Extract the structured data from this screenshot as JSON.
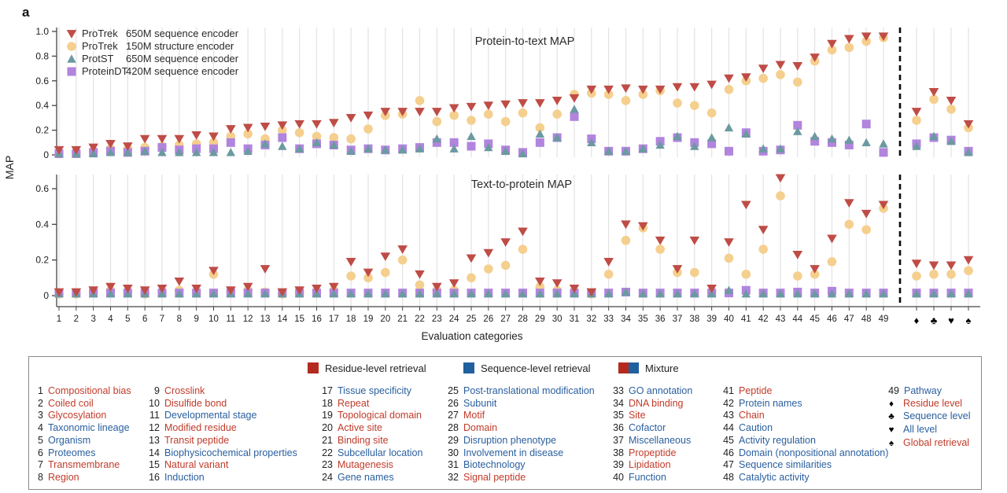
{
  "figure_label": "a",
  "axis": {
    "ylabel": "MAP",
    "xlabel": "Evaluation categories"
  },
  "encoder_legend": [
    {
      "name": "ProTrek",
      "desc": "650M sequence encoder",
      "marker": "triangle-down",
      "color": "#bf4c46"
    },
    {
      "name": "ProTrek",
      "desc": "150M structure encoder",
      "marker": "circle",
      "color": "#f5cf8e"
    },
    {
      "name": "ProtST",
      "desc": "650M sequence encoder",
      "marker": "triangle-up",
      "color": "#6b9aa1"
    },
    {
      "name": "ProteinDT",
      "desc": "420M sequence encoder",
      "marker": "square",
      "color": "#b184de"
    }
  ],
  "chart_data": [
    {
      "type": "scatter",
      "title": "Protein-to-text MAP",
      "ylabel": "MAP",
      "ylim": [
        0,
        1.0
      ],
      "yticks": [
        "0",
        "0.2",
        "0.4",
        "0.6",
        "0.8",
        "1.0"
      ],
      "x_categories": [
        "1",
        "2",
        "3",
        "4",
        "5",
        "6",
        "7",
        "8",
        "9",
        "10",
        "11",
        "12",
        "13",
        "14",
        "15",
        "16",
        "17",
        "18",
        "19",
        "20",
        "21",
        "22",
        "23",
        "24",
        "25",
        "26",
        "27",
        "28",
        "29",
        "30",
        "31",
        "32",
        "33",
        "34",
        "35",
        "36",
        "37",
        "38",
        "39",
        "40",
        "41",
        "42",
        "43",
        "44",
        "45",
        "46",
        "47",
        "48",
        "49",
        "♦",
        "♣",
        "♥",
        "♠"
      ],
      "series": [
        {
          "name": "ProTrek 650M sequence encoder",
          "marker": "triangle-down",
          "color": "#bf4c46",
          "values": [
            0.04,
            0.04,
            0.06,
            0.09,
            0.07,
            0.13,
            0.13,
            0.13,
            0.16,
            0.15,
            0.21,
            0.22,
            0.23,
            0.24,
            0.25,
            0.25,
            0.26,
            0.3,
            0.32,
            0.35,
            0.35,
            0.35,
            0.35,
            0.38,
            0.39,
            0.4,
            0.41,
            0.42,
            0.42,
            0.44,
            0.46,
            0.53,
            0.53,
            0.54,
            0.53,
            0.53,
            0.55,
            0.55,
            0.57,
            0.62,
            0.63,
            0.7,
            0.73,
            0.72,
            0.79,
            0.9,
            0.94,
            0.96,
            0.96,
            0.35,
            0.51,
            0.44,
            0.25
          ]
        },
        {
          "name": "ProTrek 150M structure encoder",
          "marker": "circle",
          "color": "#f5cf8e",
          "values": [
            0.01,
            0.02,
            0.03,
            0.05,
            0.05,
            0.06,
            0.07,
            0.08,
            0.09,
            0.1,
            0.15,
            0.17,
            0.13,
            0.2,
            0.18,
            0.15,
            0.14,
            0.13,
            0.21,
            0.32,
            0.33,
            0.44,
            0.27,
            0.32,
            0.28,
            0.33,
            0.27,
            0.34,
            0.22,
            0.33,
            0.49,
            0.5,
            0.49,
            0.44,
            0.49,
            0.52,
            0.42,
            0.4,
            0.34,
            0.53,
            0.6,
            0.62,
            0.65,
            0.59,
            0.76,
            0.85,
            0.87,
            0.92,
            0.95,
            0.28,
            0.45,
            0.37,
            0.22
          ]
        },
        {
          "name": "ProtST 650M sequence encoder",
          "marker": "triangle-up",
          "color": "#6b9aa1",
          "values": [
            0.01,
            0.01,
            0.01,
            0.02,
            0.02,
            0.03,
            0.02,
            0.02,
            0.02,
            0.02,
            0.02,
            0.03,
            0.09,
            0.07,
            0.05,
            0.1,
            0.08,
            0.03,
            0.05,
            0.04,
            0.04,
            0.05,
            0.13,
            0.05,
            0.15,
            0.06,
            0.03,
            0.01,
            0.17,
            0.14,
            0.37,
            0.1,
            0.03,
            0.03,
            0.05,
            0.08,
            0.15,
            0.07,
            0.14,
            0.22,
            0.17,
            0.05,
            0.05,
            0.19,
            0.15,
            0.13,
            0.12,
            0.1,
            0.09,
            0.07,
            0.15,
            0.11,
            0.02
          ]
        },
        {
          "name": "ProteinDT 420M sequence encoder",
          "marker": "square",
          "color": "#b184de",
          "values": [
            0.01,
            0.01,
            0.02,
            0.03,
            0.02,
            0.03,
            0.06,
            0.04,
            0.05,
            0.05,
            0.1,
            0.05,
            0.08,
            0.14,
            0.05,
            0.09,
            0.08,
            0.04,
            0.05,
            0.04,
            0.05,
            0.06,
            0.1,
            0.1,
            0.07,
            0.09,
            0.04,
            0.02,
            0.1,
            0.14,
            0.31,
            0.13,
            0.03,
            0.03,
            0.05,
            0.11,
            0.14,
            0.1,
            0.09,
            0.03,
            0.18,
            0.03,
            0.04,
            0.24,
            0.11,
            0.1,
            0.08,
            0.25,
            0.02,
            0.09,
            0.14,
            0.12,
            0.03
          ]
        }
      ]
    },
    {
      "type": "scatter",
      "title": "Text-to-protein MAP",
      "ylabel": "MAP",
      "ylim": [
        0,
        0.7
      ],
      "yticks": [
        "0",
        "0.2",
        "0.4",
        "0.6"
      ],
      "x_categories": [
        "1",
        "2",
        "3",
        "4",
        "5",
        "6",
        "7",
        "8",
        "9",
        "10",
        "11",
        "12",
        "13",
        "14",
        "15",
        "16",
        "17",
        "18",
        "19",
        "20",
        "21",
        "22",
        "23",
        "24",
        "25",
        "26",
        "27",
        "28",
        "29",
        "30",
        "31",
        "32",
        "33",
        "34",
        "35",
        "36",
        "37",
        "38",
        "39",
        "40",
        "41",
        "42",
        "43",
        "44",
        "45",
        "46",
        "47",
        "48",
        "49",
        "♦",
        "♣",
        "♥",
        "♠"
      ],
      "series": [
        {
          "name": "ProTrek 650M sequence encoder",
          "marker": "triangle-down",
          "color": "#bf4c46",
          "values": [
            0.02,
            0.02,
            0.03,
            0.05,
            0.04,
            0.03,
            0.04,
            0.08,
            0.04,
            0.14,
            0.03,
            0.05,
            0.15,
            0.02,
            0.03,
            0.04,
            0.05,
            0.19,
            0.13,
            0.22,
            0.26,
            0.12,
            0.05,
            0.07,
            0.21,
            0.24,
            0.3,
            0.36,
            0.08,
            0.07,
            0.04,
            0.02,
            0.19,
            0.4,
            0.39,
            0.31,
            0.15,
            0.31,
            0.04,
            0.3,
            0.51,
            0.37,
            0.66,
            0.23,
            0.15,
            0.32,
            0.52,
            0.46,
            0.51,
            0.18,
            0.17,
            0.17,
            0.2
          ]
        },
        {
          "name": "ProTrek 150M structure encoder",
          "marker": "circle",
          "color": "#f5cf8e",
          "values": [
            0.01,
            0.01,
            0.02,
            0.03,
            0.02,
            0.01,
            0.02,
            0.03,
            0.02,
            0.12,
            0.02,
            0.03,
            0.02,
            0.01,
            0.02,
            0.02,
            0.03,
            0.11,
            0.1,
            0.13,
            0.2,
            0.06,
            0.03,
            0.03,
            0.1,
            0.15,
            0.17,
            0.26,
            0.05,
            0.03,
            0.02,
            0.01,
            0.12,
            0.31,
            0.38,
            0.26,
            0.13,
            0.13,
            0.02,
            0.21,
            0.12,
            0.26,
            0.56,
            0.11,
            0.12,
            0.19,
            0.4,
            0.37,
            0.49,
            0.11,
            0.12,
            0.12,
            0.14
          ]
        },
        {
          "name": "ProtST 650M sequence encoder",
          "marker": "triangle-up",
          "color": "#6b9aa1",
          "values": [
            0.01,
            0.01,
            0.01,
            0.01,
            0.01,
            0.01,
            0.01,
            0.01,
            0.01,
            0.01,
            0.01,
            0.01,
            0.01,
            0.01,
            0.01,
            0.01,
            0.01,
            0.01,
            0.01,
            0.01,
            0.01,
            0.01,
            0.01,
            0.01,
            0.01,
            0.01,
            0.01,
            0.01,
            0.01,
            0.01,
            0.01,
            0.01,
            0.01,
            0.02,
            0.01,
            0.01,
            0.01,
            0.01,
            0.01,
            0.03,
            0.01,
            0.01,
            0.01,
            0.01,
            0.01,
            0.01,
            0.01,
            0.01,
            0.01,
            0.01,
            0.01,
            0.01,
            0.01
          ]
        },
        {
          "name": "ProteinDT 420M sequence encoder",
          "marker": "square",
          "color": "#b184de",
          "values": [
            0.015,
            0.015,
            0.015,
            0.015,
            0.015,
            0.015,
            0.015,
            0.015,
            0.015,
            0.015,
            0.015,
            0.015,
            0.015,
            0.015,
            0.015,
            0.015,
            0.015,
            0.015,
            0.015,
            0.015,
            0.015,
            0.015,
            0.015,
            0.015,
            0.015,
            0.015,
            0.015,
            0.015,
            0.015,
            0.015,
            0.015,
            0.015,
            0.015,
            0.02,
            0.015,
            0.015,
            0.015,
            0.015,
            0.015,
            0.015,
            0.03,
            0.015,
            0.015,
            0.02,
            0.015,
            0.025,
            0.015,
            0.015,
            0.015,
            0.015,
            0.015,
            0.015,
            0.015
          ]
        }
      ]
    }
  ],
  "retrieval_legend": [
    {
      "label": "Residue-level retrieval",
      "colors": [
        "#b42a1e"
      ]
    },
    {
      "label": "Sequence-level retrieval",
      "colors": [
        "#20609f"
      ]
    },
    {
      "label": "Mixture",
      "colors": [
        "#b42a1e",
        "#20609f"
      ]
    }
  ],
  "category_colors": {
    "residue": "#c13b2a",
    "sequence": "#2a5f9e"
  },
  "categories": [
    {
      "num": 1,
      "label": "Compositional bias",
      "level": "residue"
    },
    {
      "num": 2,
      "label": "Coiled coil",
      "level": "residue"
    },
    {
      "num": 3,
      "label": "Glycosylation",
      "level": "residue"
    },
    {
      "num": 4,
      "label": "Taxonomic lineage",
      "level": "sequence"
    },
    {
      "num": 5,
      "label": "Organism",
      "level": "sequence"
    },
    {
      "num": 6,
      "label": "Proteomes",
      "level": "sequence"
    },
    {
      "num": 7,
      "label": "Transmembrane",
      "level": "residue"
    },
    {
      "num": 8,
      "label": "Region",
      "level": "residue"
    },
    {
      "num": 9,
      "label": "Crosslink",
      "level": "residue"
    },
    {
      "num": 10,
      "label": "Disulfide bond",
      "level": "residue"
    },
    {
      "num": 11,
      "label": "Developmental stage",
      "level": "sequence"
    },
    {
      "num": 12,
      "label": "Modified residue",
      "level": "residue"
    },
    {
      "num": 13,
      "label": "Transit peptide",
      "level": "residue"
    },
    {
      "num": 14,
      "label": "Biophysicochemical properties",
      "level": "sequence"
    },
    {
      "num": 15,
      "label": "Natural variant",
      "level": "residue"
    },
    {
      "num": 16,
      "label": "Induction",
      "level": "sequence"
    },
    {
      "num": 17,
      "label": "Tissue specificity",
      "level": "sequence"
    },
    {
      "num": 18,
      "label": "Repeat",
      "level": "residue"
    },
    {
      "num": 19,
      "label": "Topological domain",
      "level": "residue"
    },
    {
      "num": 20,
      "label": "Active site",
      "level": "residue"
    },
    {
      "num": 21,
      "label": "Binding site",
      "level": "residue"
    },
    {
      "num": 22,
      "label": "Subcellular location",
      "level": "sequence"
    },
    {
      "num": 23,
      "label": "Mutagenesis",
      "level": "residue"
    },
    {
      "num": 24,
      "label": "Gene names",
      "level": "sequence"
    },
    {
      "num": 25,
      "label": "Post-translational modification",
      "level": "sequence"
    },
    {
      "num": 26,
      "label": "Subunit",
      "level": "sequence"
    },
    {
      "num": 27,
      "label": "Motif",
      "level": "residue"
    },
    {
      "num": 28,
      "label": "Domain",
      "level": "residue"
    },
    {
      "num": 29,
      "label": "Disruption phenotype",
      "level": "sequence"
    },
    {
      "num": 30,
      "label": "Involvement in disease",
      "level": "sequence"
    },
    {
      "num": 31,
      "label": "Biotechnology",
      "level": "sequence"
    },
    {
      "num": 32,
      "label": "Signal peptide",
      "level": "residue"
    },
    {
      "num": 33,
      "label": "GO annotation",
      "level": "sequence"
    },
    {
      "num": 34,
      "label": "DNA binding",
      "level": "residue"
    },
    {
      "num": 35,
      "label": "Site",
      "level": "residue"
    },
    {
      "num": 36,
      "label": "Cofactor",
      "level": "sequence"
    },
    {
      "num": 37,
      "label": "Miscellaneous",
      "level": "sequence"
    },
    {
      "num": 38,
      "label": "Propeptide",
      "level": "residue"
    },
    {
      "num": 39,
      "label": "Lipidation",
      "level": "residue"
    },
    {
      "num": 40,
      "label": "Function",
      "level": "sequence"
    },
    {
      "num": 41,
      "label": "Peptide",
      "level": "residue"
    },
    {
      "num": 42,
      "label": "Protein names",
      "level": "sequence"
    },
    {
      "num": 43,
      "label": "Chain",
      "level": "residue"
    },
    {
      "num": 44,
      "label": "Caution",
      "level": "sequence"
    },
    {
      "num": 45,
      "label": "Activity regulation",
      "level": "sequence"
    },
    {
      "num": 46,
      "label": "Domain (nonpositional annotation)",
      "level": "sequence"
    },
    {
      "num": 47,
      "label": "Sequence similarities",
      "level": "sequence"
    },
    {
      "num": 48,
      "label": "Catalytic activity",
      "level": "sequence"
    },
    {
      "num": 49,
      "label": "Pathway",
      "level": "sequence"
    }
  ],
  "suit_legend": [
    {
      "symbol": "♦",
      "label": "Residue level",
      "level": "residue"
    },
    {
      "symbol": "♣",
      "label": "Sequence level",
      "level": "sequence"
    },
    {
      "symbol": "♥",
      "label": "All level",
      "level": "sequence"
    },
    {
      "symbol": "♠",
      "label": "Global retrieval",
      "level": "residue"
    }
  ]
}
